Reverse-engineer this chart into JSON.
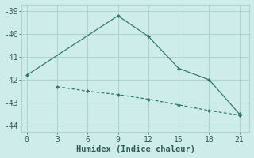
{
  "line1_x": [
    0,
    9,
    12,
    15,
    18,
    21
  ],
  "line1_y": [
    -41.8,
    -39.2,
    -40.1,
    -41.5,
    -42.0,
    -43.5
  ],
  "line2_x": [
    3,
    6,
    9,
    12,
    15,
    18,
    21
  ],
  "line2_y": [
    -42.3,
    -42.5,
    -42.65,
    -42.85,
    -43.1,
    -43.35,
    -43.55
  ],
  "line_color": "#2e7d6e",
  "bg_color": "#ceecea",
  "grid_color": "#aed4d0",
  "xlabel": "Humidex (Indice chaleur)",
  "xlim": [
    -0.5,
    22
  ],
  "ylim": [
    -44.3,
    -38.7
  ],
  "xticks": [
    0,
    3,
    6,
    9,
    12,
    15,
    18,
    21
  ],
  "yticks": [
    -39,
    -40,
    -41,
    -42,
    -43,
    -44
  ],
  "font_color": "#2e5c50",
  "tick_fontsize": 7,
  "label_fontsize": 7.5
}
